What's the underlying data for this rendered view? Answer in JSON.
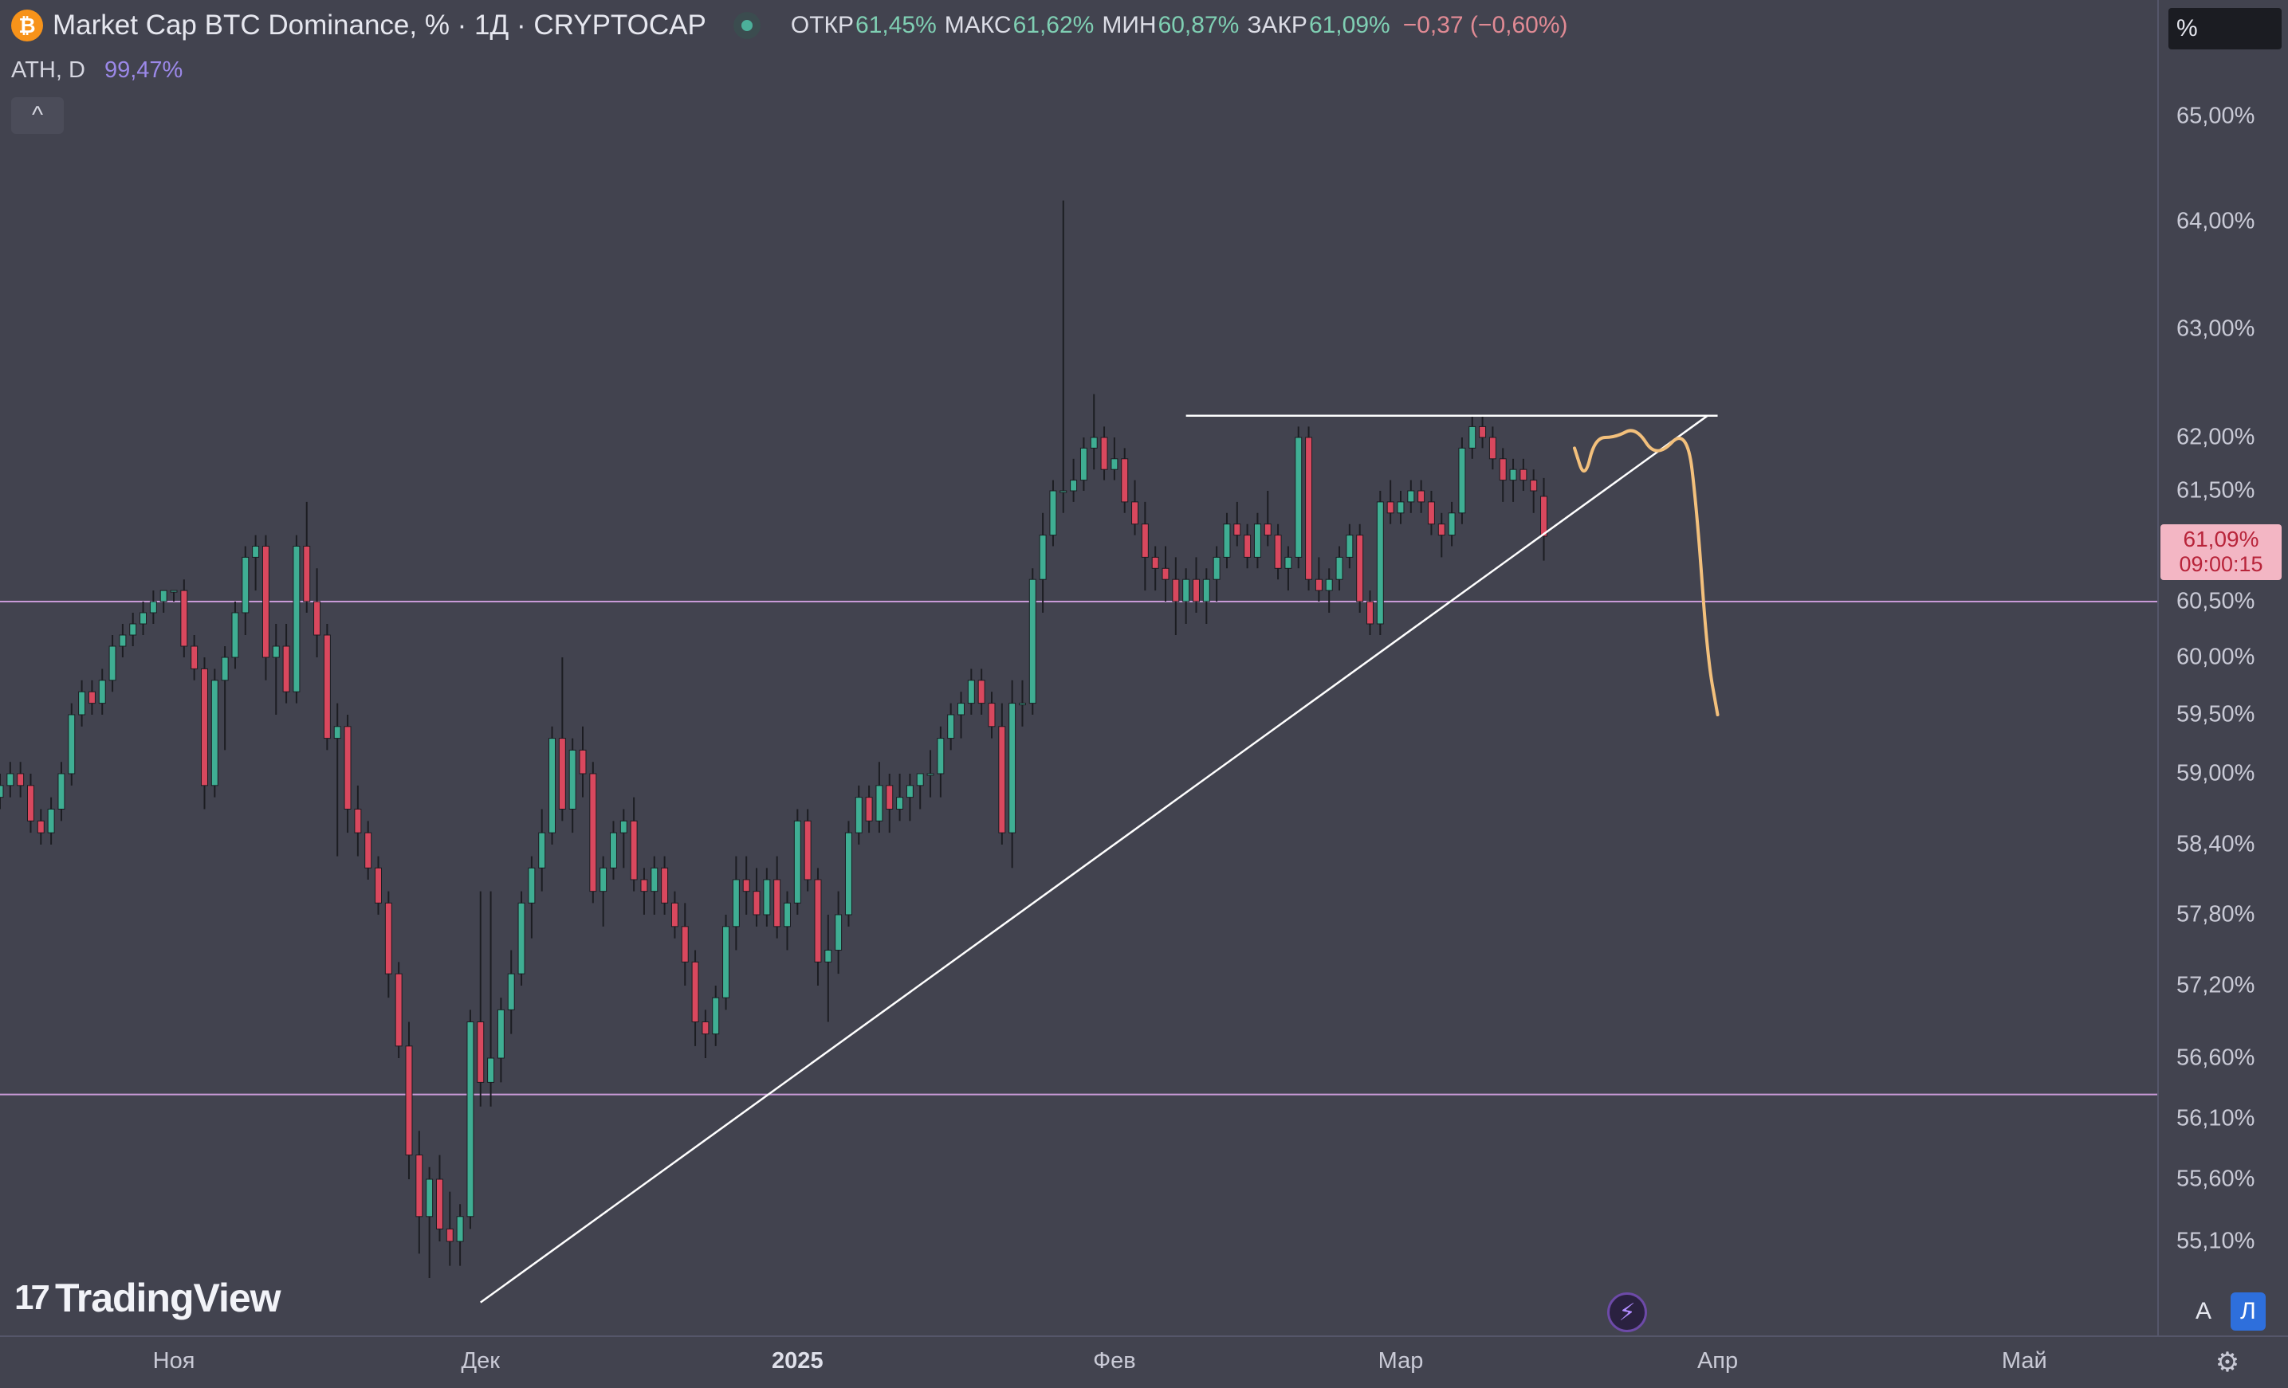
{
  "header": {
    "symbol_title": "Market Cap BTC Dominance, % · 1Д · CRYPTOCAP",
    "coin_glyph": "₿",
    "open_label": "ОТКР",
    "open_value": "61,45%",
    "high_label": "МАКС",
    "high_value": "61,62%",
    "low_label": "МИН",
    "low_value": "60,87%",
    "close_label": "ЗАКР",
    "close_value": "61,09%",
    "change": "−0,37 (−0,60%)"
  },
  "indicator": {
    "name": "ATH, D",
    "value": "99,47%"
  },
  "collapse_glyph": "^",
  "scale_label": "%",
  "price_tag": {
    "price": "61,09%",
    "countdown": "09:00:15"
  },
  "logo_text": "TradingView",
  "logo_mark": "17",
  "auto_label": "A",
  "log_label": "Л",
  "colors": {
    "background": "#42434f",
    "up": "#3fae93",
    "down": "#d9485e",
    "wick": "#1c1d22",
    "level_line": "#c99ad8",
    "trend_line": "#ffffff",
    "forecast_line": "#f3c07c",
    "price_tag": "#f3b6c4"
  },
  "chart_data": {
    "type": "candlestick",
    "title": "Market Cap BTC Dominance, % · 1Д · CRYPTOCAP",
    "ylabel": "%",
    "ylim": [
      54.5,
      65.6
    ],
    "y_ticks": [
      "65,00%",
      "64,00%",
      "63,00%",
      "62,00%",
      "61,50%",
      "60,50%",
      "60,00%",
      "59,50%",
      "59,00%",
      "58,40%",
      "57,80%",
      "57,20%",
      "56,60%",
      "56,10%",
      "55,60%",
      "55,10%"
    ],
    "y_tick_values": [
      65.0,
      64.0,
      63.0,
      62.0,
      61.5,
      60.5,
      60.0,
      59.5,
      59.0,
      58.4,
      57.8,
      57.2,
      56.6,
      56.1,
      55.6,
      55.1
    ],
    "x_ticks": [
      "Ноя",
      "Дек",
      "2025",
      "Фев",
      "Мар",
      "Апр",
      "Май"
    ],
    "x_tick_dates": [
      "2024-11-01",
      "2024-12-01",
      "2025-01-01",
      "2025-02-01",
      "2025-03-01",
      "2025-04-01",
      "2025-05-01"
    ],
    "x_range": [
      "2024-10-15",
      "2025-05-14"
    ],
    "grid": false,
    "last_close": 61.09,
    "start_date": "2024-10-15",
    "candles": [
      [
        58.8,
        59.0,
        58.7,
        58.9
      ],
      [
        58.9,
        59.1,
        58.8,
        59.0
      ],
      [
        59.0,
        59.1,
        58.8,
        58.9
      ],
      [
        58.9,
        59.0,
        58.5,
        58.6
      ],
      [
        58.6,
        58.7,
        58.4,
        58.5
      ],
      [
        58.5,
        58.8,
        58.4,
        58.7
      ],
      [
        58.7,
        59.1,
        58.6,
        59.0
      ],
      [
        59.0,
        59.6,
        58.9,
        59.5
      ],
      [
        59.5,
        59.8,
        59.4,
        59.7
      ],
      [
        59.7,
        59.8,
        59.5,
        59.6
      ],
      [
        59.6,
        59.9,
        59.5,
        59.8
      ],
      [
        59.8,
        60.2,
        59.7,
        60.1
      ],
      [
        60.1,
        60.3,
        60.0,
        60.2
      ],
      [
        60.2,
        60.4,
        60.1,
        60.3
      ],
      [
        60.3,
        60.5,
        60.2,
        60.4
      ],
      [
        60.4,
        60.6,
        60.3,
        60.5
      ],
      [
        60.5,
        60.6,
        60.4,
        60.6
      ],
      [
        60.6,
        60.6,
        60.5,
        60.6
      ],
      [
        60.6,
        60.7,
        60.0,
        60.1
      ],
      [
        60.1,
        60.2,
        59.8,
        59.9
      ],
      [
        59.9,
        60.0,
        58.7,
        58.9
      ],
      [
        58.9,
        59.9,
        58.8,
        59.8
      ],
      [
        59.8,
        60.1,
        59.2,
        60.0
      ],
      [
        60.0,
        60.5,
        59.9,
        60.4
      ],
      [
        60.4,
        61.0,
        60.2,
        60.9
      ],
      [
        60.9,
        61.1,
        60.6,
        61.0
      ],
      [
        61.0,
        61.1,
        59.8,
        60.0
      ],
      [
        60.0,
        60.3,
        59.5,
        60.1
      ],
      [
        60.1,
        60.3,
        59.6,
        59.7
      ],
      [
        59.7,
        61.1,
        59.6,
        61.0
      ],
      [
        61.0,
        61.4,
        60.4,
        60.5
      ],
      [
        60.5,
        60.8,
        60.0,
        60.2
      ],
      [
        60.2,
        60.3,
        59.2,
        59.3
      ],
      [
        59.3,
        59.6,
        58.3,
        59.4
      ],
      [
        59.4,
        59.5,
        58.5,
        58.7
      ],
      [
        58.7,
        58.9,
        58.3,
        58.5
      ],
      [
        58.5,
        58.6,
        58.1,
        58.2
      ],
      [
        58.2,
        58.3,
        57.8,
        57.9
      ],
      [
        57.9,
        58.0,
        57.1,
        57.3
      ],
      [
        57.3,
        57.4,
        56.6,
        56.7
      ],
      [
        56.7,
        56.9,
        55.6,
        55.8
      ],
      [
        55.8,
        56.0,
        55.0,
        55.3
      ],
      [
        55.3,
        55.7,
        54.8,
        55.6
      ],
      [
        55.6,
        55.8,
        55.1,
        55.2
      ],
      [
        55.2,
        55.5,
        54.9,
        55.1
      ],
      [
        55.1,
        55.4,
        54.9,
        55.3
      ],
      [
        55.3,
        57.0,
        55.2,
        56.9
      ],
      [
        56.9,
        58.0,
        56.2,
        56.4
      ],
      [
        56.4,
        58.0,
        56.2,
        56.6
      ],
      [
        56.6,
        57.1,
        56.4,
        57.0
      ],
      [
        57.0,
        57.5,
        56.8,
        57.3
      ],
      [
        57.3,
        58.0,
        57.2,
        57.9
      ],
      [
        57.9,
        58.3,
        57.6,
        58.2
      ],
      [
        58.2,
        58.7,
        58.0,
        58.5
      ],
      [
        58.5,
        59.4,
        58.4,
        59.3
      ],
      [
        59.3,
        60.0,
        58.6,
        58.7
      ],
      [
        58.7,
        59.3,
        58.5,
        59.2
      ],
      [
        59.2,
        59.4,
        58.8,
        59.0
      ],
      [
        59.0,
        59.1,
        57.9,
        58.0
      ],
      [
        58.0,
        58.3,
        57.7,
        58.2
      ],
      [
        58.2,
        58.6,
        58.1,
        58.5
      ],
      [
        58.5,
        58.7,
        58.2,
        58.6
      ],
      [
        58.6,
        58.8,
        58.0,
        58.1
      ],
      [
        58.1,
        58.2,
        57.8,
        58.0
      ],
      [
        58.0,
        58.3,
        57.8,
        58.2
      ],
      [
        58.2,
        58.3,
        57.8,
        57.9
      ],
      [
        57.9,
        58.0,
        57.6,
        57.7
      ],
      [
        57.7,
        57.9,
        57.2,
        57.4
      ],
      [
        57.4,
        57.5,
        56.7,
        56.9
      ],
      [
        56.9,
        57.0,
        56.6,
        56.8
      ],
      [
        56.8,
        57.2,
        56.7,
        57.1
      ],
      [
        57.1,
        57.8,
        57.0,
        57.7
      ],
      [
        57.7,
        58.3,
        57.5,
        58.1
      ],
      [
        58.1,
        58.3,
        57.8,
        58.0
      ],
      [
        58.0,
        58.2,
        57.7,
        57.8
      ],
      [
        57.8,
        58.2,
        57.7,
        58.1
      ],
      [
        58.1,
        58.3,
        57.6,
        57.7
      ],
      [
        57.7,
        58.0,
        57.5,
        57.9
      ],
      [
        57.9,
        58.7,
        57.8,
        58.6
      ],
      [
        58.6,
        58.7,
        58.0,
        58.1
      ],
      [
        58.1,
        58.2,
        57.2,
        57.4
      ],
      [
        57.4,
        57.8,
        56.9,
        57.5
      ],
      [
        57.5,
        58.0,
        57.3,
        57.8
      ],
      [
        57.8,
        58.6,
        57.7,
        58.5
      ],
      [
        58.5,
        58.9,
        58.4,
        58.8
      ],
      [
        58.8,
        58.9,
        58.5,
        58.6
      ],
      [
        58.6,
        59.1,
        58.5,
        58.9
      ],
      [
        58.9,
        59.0,
        58.5,
        58.7
      ],
      [
        58.7,
        59.0,
        58.6,
        58.8
      ],
      [
        58.8,
        59.0,
        58.6,
        58.9
      ],
      [
        58.9,
        59.0,
        58.7,
        59.0
      ],
      [
        59.0,
        59.2,
        58.8,
        59.0
      ],
      [
        59.0,
        59.4,
        58.8,
        59.3
      ],
      [
        59.3,
        59.6,
        59.2,
        59.5
      ],
      [
        59.5,
        59.7,
        59.3,
        59.6
      ],
      [
        59.6,
        59.9,
        59.5,
        59.8
      ],
      [
        59.8,
        59.9,
        59.5,
        59.6
      ],
      [
        59.6,
        59.7,
        59.3,
        59.4
      ],
      [
        59.4,
        59.6,
        58.4,
        58.5
      ],
      [
        58.5,
        59.8,
        58.2,
        59.6
      ],
      [
        59.6,
        59.8,
        59.4,
        59.6
      ],
      [
        59.6,
        60.8,
        59.5,
        60.7
      ],
      [
        60.7,
        61.3,
        60.4,
        61.1
      ],
      [
        61.1,
        61.6,
        61.0,
        61.5
      ],
      [
        61.5,
        64.2,
        61.3,
        61.5
      ],
      [
        61.5,
        61.8,
        61.4,
        61.6
      ],
      [
        61.6,
        62.0,
        61.5,
        61.9
      ],
      [
        61.9,
        62.4,
        61.7,
        62.0
      ],
      [
        62.0,
        62.1,
        61.6,
        61.7
      ],
      [
        61.7,
        62.0,
        61.6,
        61.8
      ],
      [
        61.8,
        61.9,
        61.3,
        61.4
      ],
      [
        61.4,
        61.6,
        61.1,
        61.2
      ],
      [
        61.2,
        61.4,
        60.6,
        60.9
      ],
      [
        60.9,
        61.0,
        60.6,
        60.8
      ],
      [
        60.8,
        61.0,
        60.5,
        60.7
      ],
      [
        60.7,
        60.9,
        60.2,
        60.5
      ],
      [
        60.5,
        60.8,
        60.3,
        60.7
      ],
      [
        60.7,
        60.9,
        60.4,
        60.5
      ],
      [
        60.5,
        60.8,
        60.3,
        60.7
      ],
      [
        60.7,
        61.0,
        60.5,
        60.9
      ],
      [
        60.9,
        61.3,
        60.8,
        61.2
      ],
      [
        61.2,
        61.4,
        61.0,
        61.1
      ],
      [
        61.1,
        61.2,
        60.8,
        60.9
      ],
      [
        60.9,
        61.3,
        60.8,
        61.2
      ],
      [
        61.2,
        61.5,
        61.0,
        61.1
      ],
      [
        61.1,
        61.2,
        60.7,
        60.8
      ],
      [
        60.8,
        61.0,
        60.6,
        60.9
      ],
      [
        60.9,
        62.1,
        60.8,
        62.0
      ],
      [
        62.0,
        62.1,
        60.6,
        60.7
      ],
      [
        60.7,
        60.9,
        60.5,
        60.6
      ],
      [
        60.6,
        60.8,
        60.4,
        60.7
      ],
      [
        60.7,
        61.0,
        60.6,
        60.9
      ],
      [
        60.9,
        61.2,
        60.8,
        61.1
      ],
      [
        61.1,
        61.2,
        60.4,
        60.5
      ],
      [
        60.5,
        60.6,
        60.2,
        60.3
      ],
      [
        60.3,
        61.5,
        60.2,
        61.4
      ],
      [
        61.4,
        61.6,
        61.2,
        61.3
      ],
      [
        61.3,
        61.5,
        61.2,
        61.4
      ],
      [
        61.4,
        61.6,
        61.3,
        61.5
      ],
      [
        61.5,
        61.6,
        61.3,
        61.4
      ],
      [
        61.4,
        61.5,
        61.1,
        61.2
      ],
      [
        61.2,
        61.3,
        60.9,
        61.1
      ],
      [
        61.1,
        61.4,
        61.0,
        61.3
      ],
      [
        61.3,
        62.0,
        61.2,
        61.9
      ],
      [
        61.9,
        62.2,
        61.8,
        62.1
      ],
      [
        62.1,
        62.2,
        61.9,
        62.0
      ],
      [
        62.0,
        62.1,
        61.7,
        61.8
      ],
      [
        61.8,
        61.9,
        61.4,
        61.6
      ],
      [
        61.6,
        61.8,
        61.4,
        61.7
      ],
      [
        61.7,
        61.8,
        61.5,
        61.6
      ],
      [
        61.6,
        61.7,
        61.3,
        61.5
      ],
      [
        61.45,
        61.62,
        60.87,
        61.09
      ]
    ],
    "horizontal_levels": [
      60.5,
      56.3
    ],
    "trend_lines": [
      {
        "from": [
          "2024-12-01",
          54.6
        ],
        "to": [
          "2025-03-31",
          62.2
        ]
      },
      {
        "from": [
          "2025-02-08",
          62.2
        ],
        "to": [
          "2025-04-01",
          62.2
        ]
      }
    ],
    "forecast_path": [
      [
        "2025-03-18",
        61.9
      ],
      [
        "2025-03-19",
        61.6
      ],
      [
        "2025-03-20",
        62.0
      ],
      [
        "2025-03-22",
        62.0
      ],
      [
        "2025-03-24",
        62.1
      ],
      [
        "2025-03-26",
        61.8
      ],
      [
        "2025-03-29",
        62.1
      ],
      [
        "2025-03-30",
        61.3
      ],
      [
        "2025-03-31",
        60.0
      ],
      [
        "2025-04-01",
        59.5
      ]
    ]
  }
}
